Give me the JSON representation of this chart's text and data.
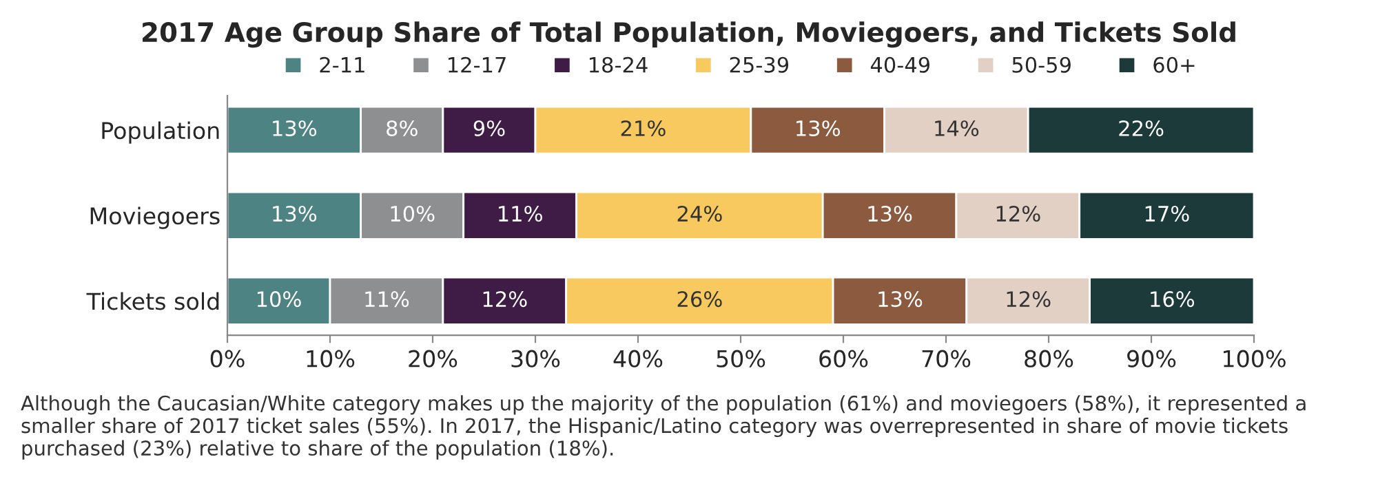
{
  "chart_data": {
    "type": "bar",
    "orientation": "horizontal",
    "stacked": true,
    "title": "2017 Age Group Share of Total Population, Moviegoers, and Tickets Sold",
    "categories": [
      "Population",
      "Moviegoers",
      "Tickets sold"
    ],
    "series": [
      {
        "name": "2-11",
        "color": "#4e8384",
        "values": [
          13,
          13,
          10
        ],
        "value_labels": [
          "13%",
          "13%",
          "10%"
        ]
      },
      {
        "name": "12-17",
        "color": "#8e8f90",
        "values": [
          8,
          10,
          11
        ],
        "value_labels": [
          "8%",
          "10%",
          "11%"
        ]
      },
      {
        "name": "18-24",
        "color": "#3e1c46",
        "values": [
          9,
          11,
          12
        ],
        "value_labels": [
          "9%",
          "11%",
          "12%"
        ]
      },
      {
        "name": "25-39",
        "color": "#f8c95e",
        "values": [
          21,
          24,
          26
        ],
        "value_labels": [
          "21%",
          "24%",
          "26%"
        ]
      },
      {
        "name": "40-49",
        "color": "#8c5a3e",
        "values": [
          13,
          13,
          13
        ],
        "value_labels": [
          "13%",
          "13%",
          "13%"
        ]
      },
      {
        "name": "50-59",
        "color": "#e2d0c5",
        "values": [
          14,
          12,
          12
        ],
        "value_labels": [
          "14%",
          "12%",
          "12%"
        ]
      },
      {
        "name": "60+",
        "color": "#1c3a3a",
        "values": [
          22,
          17,
          16
        ],
        "value_labels": [
          "22%",
          "17%",
          "16%"
        ]
      }
    ],
    "xlim": [
      0,
      100
    ],
    "xticks": [
      {
        "value": 0,
        "label": "0%"
      },
      {
        "value": 10,
        "label": "10%"
      },
      {
        "value": 20,
        "label": "20%"
      },
      {
        "value": 30,
        "label": "30%"
      },
      {
        "value": 40,
        "label": "40%"
      },
      {
        "value": 50,
        "label": "50%"
      },
      {
        "value": 60,
        "label": "60%"
      },
      {
        "value": 70,
        "label": "70%"
      },
      {
        "value": 80,
        "label": "80%"
      },
      {
        "value": 90,
        "label": "90%"
      },
      {
        "value": 100,
        "label": "100%"
      }
    ],
    "legend": "top",
    "grid": false,
    "annotations": [
      "Although the Caucasian/White category makes up the majority of the population (61%) and moviegoers (58%), it represented a smaller share of 2017 ticket sales (55%). In 2017, the Hispanic/Latino category was overrepresented in share of movie tickets purchased (23%) relative to share of the population (18%)."
    ]
  }
}
